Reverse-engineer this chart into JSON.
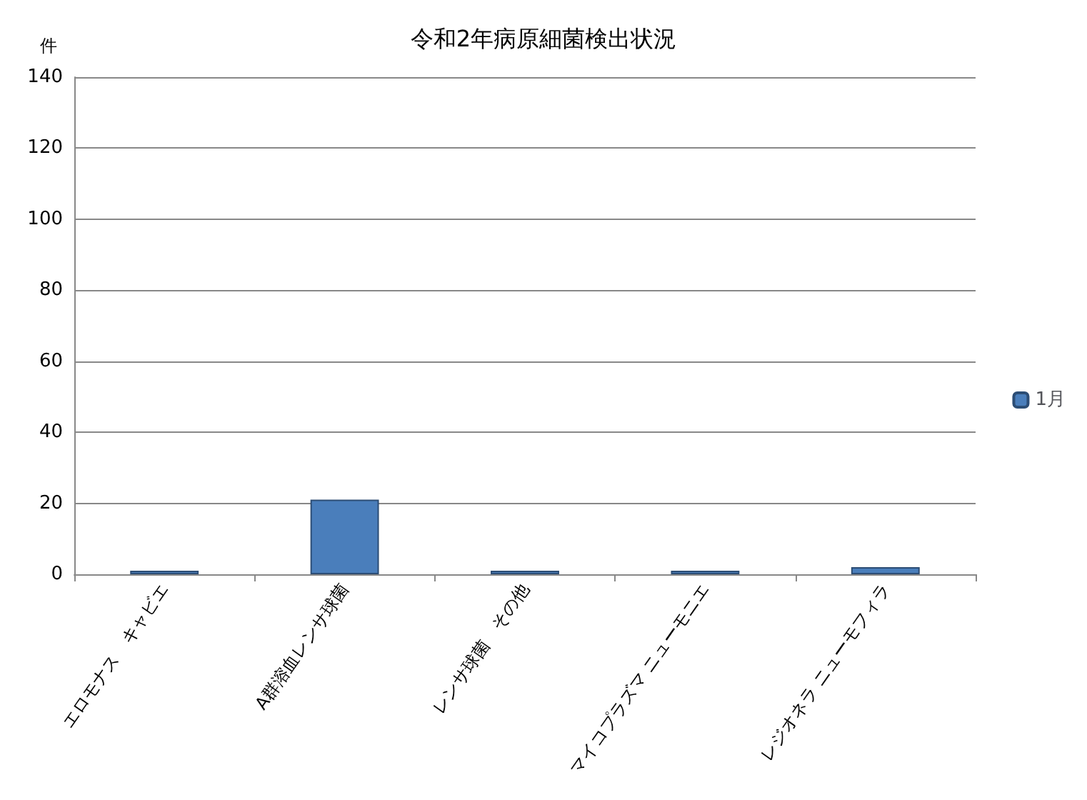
{
  "chart_data": {
    "type": "bar",
    "title": "令和2年病原細菌検出状況",
    "ylabel": "件",
    "categories": [
      "エロモナス　キャビエ",
      "A群溶血レンサ球菌",
      "レンサ球菌　その他",
      "マイコプラズマ ニューモニエ",
      "レジオネラ ニューモフィラ"
    ],
    "series": [
      {
        "name": "1月",
        "color": "#4a7ebb",
        "values": [
          1,
          21,
          1,
          1,
          2
        ]
      }
    ],
    "ylim": [
      0,
      140
    ],
    "yticks": [
      0,
      20,
      40,
      60,
      80,
      100,
      120,
      140
    ],
    "grid": "y",
    "legend": "right"
  }
}
